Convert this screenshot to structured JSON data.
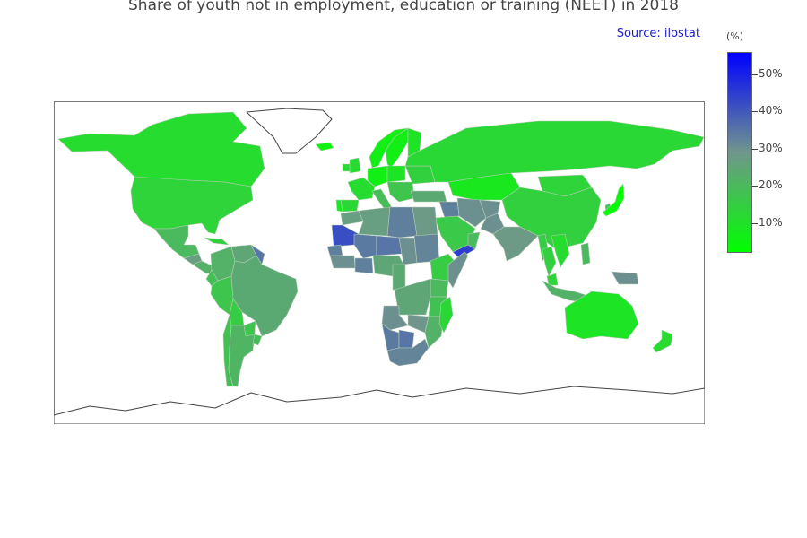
{
  "title": "Share of youth not in employment, education or training (NEET) in 2018",
  "source": "Source: ilostat",
  "colorbar": {
    "title": "(%)",
    "min": 2,
    "max": 56,
    "low_color": "#00ff00",
    "high_color": "#0000ff",
    "ticks": [
      {
        "value": 10,
        "label": "10%"
      },
      {
        "value": 20,
        "label": "20%"
      },
      {
        "value": 30,
        "label": "30%"
      },
      {
        "value": 40,
        "label": "40%"
      },
      {
        "value": 50,
        "label": "50%"
      }
    ]
  },
  "map": {
    "projection": "equirectangular",
    "regions": [
      {
        "name": "Canada",
        "neet": 11
      },
      {
        "name": "USA",
        "neet": 13
      },
      {
        "name": "Mexico",
        "neet": 20
      },
      {
        "name": "Guatemala",
        "neet": 27
      },
      {
        "name": "Central America",
        "neet": 22
      },
      {
        "name": "Cuba",
        "neet": 14
      },
      {
        "name": "Colombia",
        "neet": 22
      },
      {
        "name": "Venezuela",
        "neet": 25
      },
      {
        "name": "Guyana",
        "neet": 35
      },
      {
        "name": "Ecuador",
        "neet": 18
      },
      {
        "name": "Peru",
        "neet": 17
      },
      {
        "name": "Brazil",
        "neet": 24
      },
      {
        "name": "Bolivia",
        "neet": 15
      },
      {
        "name": "Paraguay",
        "neet": 17
      },
      {
        "name": "Chile",
        "neet": 18
      },
      {
        "name": "Argentina",
        "neet": 21
      },
      {
        "name": "Uruguay",
        "neet": 19
      },
      {
        "name": "Iceland",
        "neet": 5
      },
      {
        "name": "Norway",
        "neet": 6
      },
      {
        "name": "Sweden",
        "neet": 6
      },
      {
        "name": "Finland",
        "neet": 9
      },
      {
        "name": "United Kingdom",
        "neet": 11
      },
      {
        "name": "Ireland",
        "neet": 11
      },
      {
        "name": "France",
        "neet": 11
      },
      {
        "name": "Spain",
        "neet": 12
      },
      {
        "name": "Portugal",
        "neet": 8
      },
      {
        "name": "Germany",
        "neet": 6
      },
      {
        "name": "Poland",
        "neet": 9
      },
      {
        "name": "Italy",
        "neet": 19
      },
      {
        "name": "Balkans",
        "neet": 17
      },
      {
        "name": "Ukraine",
        "neet": 14
      },
      {
        "name": "Russia",
        "neet": 12
      },
      {
        "name": "Turkey",
        "neet": 24
      },
      {
        "name": "Kazakhstan",
        "neet": 8
      },
      {
        "name": "Mongolia",
        "neet": 13
      },
      {
        "name": "China",
        "neet": 14
      },
      {
        "name": "Japan",
        "neet": 3
      },
      {
        "name": "South Korea",
        "neet": 16
      },
      {
        "name": "Morocco",
        "neet": 27
      },
      {
        "name": "Algeria",
        "neet": 27
      },
      {
        "name": "Libya",
        "neet": 33
      },
      {
        "name": "Egypt",
        "neet": 28
      },
      {
        "name": "Mauritania",
        "neet": 42
      },
      {
        "name": "Mali",
        "neet": 34
      },
      {
        "name": "Niger",
        "neet": 35
      },
      {
        "name": "Chad",
        "neet": 30
      },
      {
        "name": "Sudan",
        "neet": 32
      },
      {
        "name": "Senegal",
        "neet": 33
      },
      {
        "name": "Guinea",
        "neet": 30
      },
      {
        "name": "Ivory Coast",
        "neet": 33
      },
      {
        "name": "Nigeria",
        "neet": 25
      },
      {
        "name": "Cameroon",
        "neet": 24
      },
      {
        "name": "Ethiopia",
        "neet": 15
      },
      {
        "name": "Somalia",
        "neet": 30
      },
      {
        "name": "Kenya",
        "neet": 20
      },
      {
        "name": "DR Congo",
        "neet": 25
      },
      {
        "name": "Tanzania",
        "neet": 18
      },
      {
        "name": "Angola",
        "neet": 30
      },
      {
        "name": "Zambia",
        "neet": 29
      },
      {
        "name": "Mozambique",
        "neet": 22
      },
      {
        "name": "Namibia",
        "neet": 34
      },
      {
        "name": "Botswana",
        "neet": 35
      },
      {
        "name": "South Africa",
        "neet": 32
      },
      {
        "name": "Madagascar",
        "neet": 12
      },
      {
        "name": "Saudi Arabia",
        "neet": 16
      },
      {
        "name": "Yemen",
        "neet": 45
      },
      {
        "name": "Oman",
        "neet": 20
      },
      {
        "name": "Iraq",
        "neet": 33
      },
      {
        "name": "Iran",
        "neet": 30
      },
      {
        "name": "Afghanistan",
        "neet": 30
      },
      {
        "name": "Pakistan",
        "neet": 30
      },
      {
        "name": "India",
        "neet": 28
      },
      {
        "name": "Myanmar",
        "neet": 15
      },
      {
        "name": "Thailand",
        "neet": 14
      },
      {
        "name": "Indochina",
        "neet": 11
      },
      {
        "name": "Malaysia",
        "neet": 13
      },
      {
        "name": "Indonesia",
        "neet": 22
      },
      {
        "name": "Philippines",
        "neet": 20
      },
      {
        "name": "Papua New Guinea",
        "neet": 30
      },
      {
        "name": "Australia",
        "neet": 9
      },
      {
        "name": "New Zealand",
        "neet": 11
      },
      {
        "name": "Greenland",
        "neet": null
      },
      {
        "name": "Antarctica",
        "neet": null
      }
    ]
  }
}
